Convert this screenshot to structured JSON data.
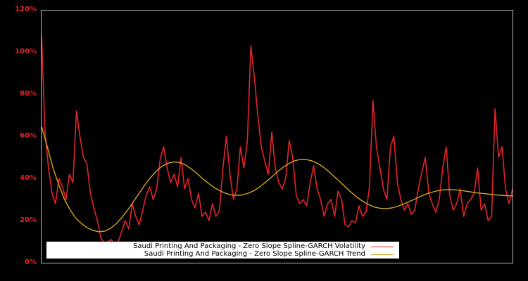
{
  "chart_data": {
    "type": "line",
    "title": "",
    "xlabel": "",
    "ylabel": "",
    "ylim": [
      0,
      1.2
    ],
    "yticks": [
      {
        "value": 0,
        "label": "0%"
      },
      {
        "value": 0.2,
        "label": "20%"
      },
      {
        "value": 0.4,
        "label": "40%"
      },
      {
        "value": 0.6,
        "label": "60%"
      },
      {
        "value": 0.8,
        "label": "80%"
      },
      {
        "value": 1.0,
        "label": "100%"
      },
      {
        "value": 1.2,
        "label": "120%"
      }
    ],
    "grid": false,
    "legend_position": "lower-left, inside plot",
    "background": "#000000",
    "axes_color": "#bbbbbb",
    "tick_label_color": "#e3242b",
    "x_index_range": [
      0,
      134
    ],
    "series": [
      {
        "name": "Saudi Printing And Packaging - Zero Slope Spline-GARCH Volatility",
        "color": "#e3242b",
        "values": [
          1.08,
          0.62,
          0.45,
          0.33,
          0.28,
          0.4,
          0.36,
          0.3,
          0.42,
          0.38,
          0.72,
          0.6,
          0.5,
          0.47,
          0.33,
          0.26,
          0.2,
          0.12,
          0.09,
          0.1,
          0.11,
          0.08,
          0.1,
          0.15,
          0.2,
          0.16,
          0.28,
          0.22,
          0.18,
          0.25,
          0.32,
          0.36,
          0.3,
          0.35,
          0.49,
          0.55,
          0.45,
          0.38,
          0.42,
          0.36,
          0.5,
          0.35,
          0.4,
          0.3,
          0.26,
          0.33,
          0.22,
          0.24,
          0.2,
          0.28,
          0.22,
          0.25,
          0.45,
          0.6,
          0.42,
          0.3,
          0.35,
          0.55,
          0.45,
          0.58,
          1.03,
          0.88,
          0.7,
          0.55,
          0.48,
          0.42,
          0.62,
          0.45,
          0.38,
          0.35,
          0.4,
          0.58,
          0.5,
          0.32,
          0.28,
          0.3,
          0.27,
          0.38,
          0.46,
          0.35,
          0.3,
          0.22,
          0.28,
          0.3,
          0.22,
          0.34,
          0.3,
          0.18,
          0.17,
          0.2,
          0.19,
          0.27,
          0.22,
          0.24,
          0.36,
          0.77,
          0.55,
          0.45,
          0.35,
          0.3,
          0.55,
          0.6,
          0.38,
          0.3,
          0.25,
          0.28,
          0.23,
          0.25,
          0.35,
          0.43,
          0.5,
          0.33,
          0.28,
          0.24,
          0.3,
          0.45,
          0.55,
          0.32,
          0.25,
          0.28,
          0.35,
          0.22,
          0.28,
          0.3,
          0.33,
          0.45,
          0.25,
          0.28,
          0.2,
          0.22,
          0.73,
          0.5,
          0.55,
          0.35,
          0.28,
          0.35
        ]
      },
      {
        "name": "Saudi Printing And Packaging - Zero Slope Spline-GARCH Trend",
        "color": "#d4a520",
        "values": [
          0.647,
          0.55,
          0.45,
          0.37,
          0.3,
          0.25,
          0.21,
          0.185,
          0.165,
          0.153,
          0.147,
          0.15,
          0.163,
          0.185,
          0.215,
          0.25,
          0.29,
          0.33,
          0.37,
          0.405,
          0.435,
          0.458,
          0.472,
          0.478,
          0.476,
          0.465,
          0.447,
          0.425,
          0.4,
          0.378,
          0.358,
          0.342,
          0.33,
          0.322,
          0.32,
          0.322,
          0.33,
          0.342,
          0.36,
          0.382,
          0.405,
          0.43,
          0.452,
          0.47,
          0.483,
          0.49,
          0.49,
          0.484,
          0.472,
          0.455,
          0.433,
          0.408,
          0.383,
          0.357,
          0.332,
          0.31,
          0.29,
          0.275,
          0.264,
          0.258,
          0.257,
          0.26,
          0.268,
          0.278,
          0.29,
          0.302,
          0.315,
          0.326,
          0.335,
          0.342,
          0.346,
          0.347,
          0.346,
          0.343,
          0.339,
          0.335,
          0.331,
          0.328,
          0.325,
          0.322,
          0.32,
          0.318,
          0.317
        ]
      }
    ]
  },
  "legend": {
    "items": [
      {
        "label": "Saudi Printing And Packaging - Zero Slope Spline-GARCH Volatility",
        "color": "#e3242b"
      },
      {
        "label": "Saudi Printing And Packaging - Zero Slope Spline-GARCH Trend",
        "color": "#d4a520"
      }
    ]
  }
}
